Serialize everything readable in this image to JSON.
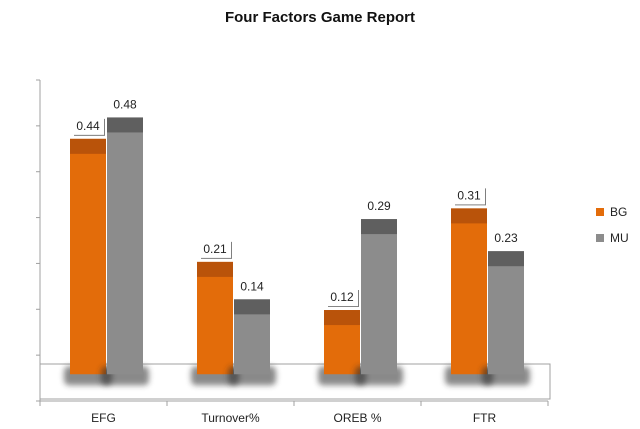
{
  "chart_data": {
    "type": "bar",
    "title": "Four Factors Game Report",
    "categories": [
      "EFG",
      "Turnover%",
      "OREB %",
      "FTR"
    ],
    "series": [
      {
        "name": "BG",
        "values": [
          0.44,
          0.21,
          0.12,
          0.31
        ],
        "color": "#e36c0a",
        "cap_color": "#b9530a"
      },
      {
        "name": "MU",
        "values": [
          0.48,
          0.14,
          0.29,
          0.23
        ],
        "color": "#8c8c8c",
        "cap_color": "#5f5f5f"
      }
    ],
    "xlabel": "",
    "ylabel": "",
    "ylim": [
      -0.05,
      0.55
    ],
    "grid": false,
    "legend": "right",
    "style": "3d-shadow"
  }
}
